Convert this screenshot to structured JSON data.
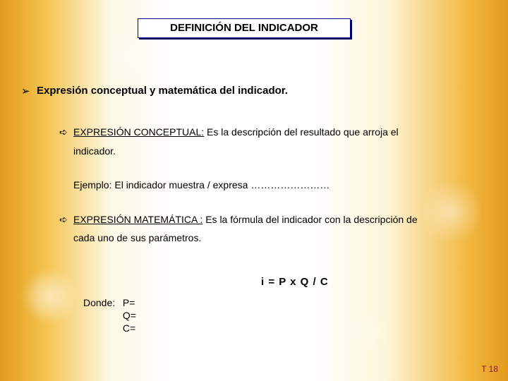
{
  "title": "DEFINICIÓN DEL INDICADOR",
  "heading": {
    "bullet": "➢",
    "text": "Expresión conceptual y matemática del indicador."
  },
  "item1": {
    "bullet": "➪",
    "lead": "EXPRESIÓN CONCEPTUAL:",
    "rest": " Es la descripción del resultado que arroja el",
    "cont": "indicador."
  },
  "example": "Ejemplo: El indicador muestra / expresa ……………………",
  "item2": {
    "bullet": "➪",
    "lead": "EXPRESIÓN MATEMÁTICA :",
    "rest": " Es la fórmula del indicador con la descripción de",
    "cont": "cada uno de sus parámetros."
  },
  "formula": "i = P x Q / C",
  "donde": {
    "label": "Donde:",
    "p": "P=",
    "q": "Q=",
    "c": "C="
  },
  "footer": "T 18",
  "colors": {
    "title_border": "#000080",
    "title_shadow": "#000060",
    "footer_text": "#8a1a1a"
  }
}
